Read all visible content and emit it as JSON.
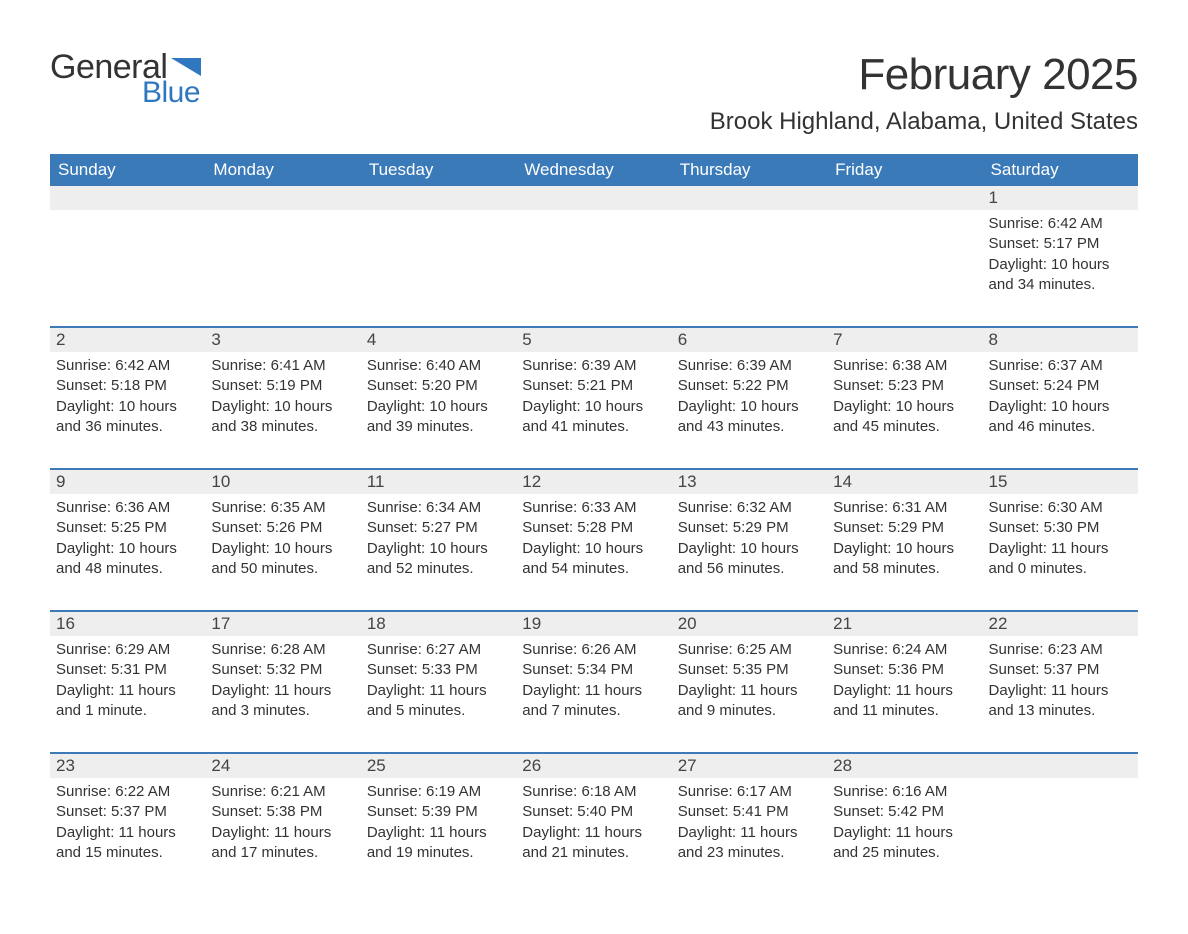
{
  "logo": {
    "text1": "General",
    "text2": "Blue",
    "color_blue": "#2f78bf",
    "color_dark": "#333333"
  },
  "header": {
    "title": "February 2025",
    "location": "Brook Highland, Alabama, United States",
    "title_color": "#333333",
    "title_fontsize": 44,
    "location_fontsize": 24
  },
  "table": {
    "header_bg": "#3a7ab8",
    "header_fg": "#ffffff",
    "row_stripe_bg": "#eeeeee",
    "separator_color": "#3a7ab8",
    "columns": [
      "Sunday",
      "Monday",
      "Tuesday",
      "Wednesday",
      "Thursday",
      "Friday",
      "Saturday"
    ]
  },
  "weeks": [
    [
      null,
      null,
      null,
      null,
      null,
      null,
      {
        "n": "1",
        "sunrise": "Sunrise: 6:42 AM",
        "sunset": "Sunset: 5:17 PM",
        "day1": "Daylight: 10 hours",
        "day2": "and 34 minutes."
      }
    ],
    [
      {
        "n": "2",
        "sunrise": "Sunrise: 6:42 AM",
        "sunset": "Sunset: 5:18 PM",
        "day1": "Daylight: 10 hours",
        "day2": "and 36 minutes."
      },
      {
        "n": "3",
        "sunrise": "Sunrise: 6:41 AM",
        "sunset": "Sunset: 5:19 PM",
        "day1": "Daylight: 10 hours",
        "day2": "and 38 minutes."
      },
      {
        "n": "4",
        "sunrise": "Sunrise: 6:40 AM",
        "sunset": "Sunset: 5:20 PM",
        "day1": "Daylight: 10 hours",
        "day2": "and 39 minutes."
      },
      {
        "n": "5",
        "sunrise": "Sunrise: 6:39 AM",
        "sunset": "Sunset: 5:21 PM",
        "day1": "Daylight: 10 hours",
        "day2": "and 41 minutes."
      },
      {
        "n": "6",
        "sunrise": "Sunrise: 6:39 AM",
        "sunset": "Sunset: 5:22 PM",
        "day1": "Daylight: 10 hours",
        "day2": "and 43 minutes."
      },
      {
        "n": "7",
        "sunrise": "Sunrise: 6:38 AM",
        "sunset": "Sunset: 5:23 PM",
        "day1": "Daylight: 10 hours",
        "day2": "and 45 minutes."
      },
      {
        "n": "8",
        "sunrise": "Sunrise: 6:37 AM",
        "sunset": "Sunset: 5:24 PM",
        "day1": "Daylight: 10 hours",
        "day2": "and 46 minutes."
      }
    ],
    [
      {
        "n": "9",
        "sunrise": "Sunrise: 6:36 AM",
        "sunset": "Sunset: 5:25 PM",
        "day1": "Daylight: 10 hours",
        "day2": "and 48 minutes."
      },
      {
        "n": "10",
        "sunrise": "Sunrise: 6:35 AM",
        "sunset": "Sunset: 5:26 PM",
        "day1": "Daylight: 10 hours",
        "day2": "and 50 minutes."
      },
      {
        "n": "11",
        "sunrise": "Sunrise: 6:34 AM",
        "sunset": "Sunset: 5:27 PM",
        "day1": "Daylight: 10 hours",
        "day2": "and 52 minutes."
      },
      {
        "n": "12",
        "sunrise": "Sunrise: 6:33 AM",
        "sunset": "Sunset: 5:28 PM",
        "day1": "Daylight: 10 hours",
        "day2": "and 54 minutes."
      },
      {
        "n": "13",
        "sunrise": "Sunrise: 6:32 AM",
        "sunset": "Sunset: 5:29 PM",
        "day1": "Daylight: 10 hours",
        "day2": "and 56 minutes."
      },
      {
        "n": "14",
        "sunrise": "Sunrise: 6:31 AM",
        "sunset": "Sunset: 5:29 PM",
        "day1": "Daylight: 10 hours",
        "day2": "and 58 minutes."
      },
      {
        "n": "15",
        "sunrise": "Sunrise: 6:30 AM",
        "sunset": "Sunset: 5:30 PM",
        "day1": "Daylight: 11 hours",
        "day2": "and 0 minutes."
      }
    ],
    [
      {
        "n": "16",
        "sunrise": "Sunrise: 6:29 AM",
        "sunset": "Sunset: 5:31 PM",
        "day1": "Daylight: 11 hours",
        "day2": "and 1 minute."
      },
      {
        "n": "17",
        "sunrise": "Sunrise: 6:28 AM",
        "sunset": "Sunset: 5:32 PM",
        "day1": "Daylight: 11 hours",
        "day2": "and 3 minutes."
      },
      {
        "n": "18",
        "sunrise": "Sunrise: 6:27 AM",
        "sunset": "Sunset: 5:33 PM",
        "day1": "Daylight: 11 hours",
        "day2": "and 5 minutes."
      },
      {
        "n": "19",
        "sunrise": "Sunrise: 6:26 AM",
        "sunset": "Sunset: 5:34 PM",
        "day1": "Daylight: 11 hours",
        "day2": "and 7 minutes."
      },
      {
        "n": "20",
        "sunrise": "Sunrise: 6:25 AM",
        "sunset": "Sunset: 5:35 PM",
        "day1": "Daylight: 11 hours",
        "day2": "and 9 minutes."
      },
      {
        "n": "21",
        "sunrise": "Sunrise: 6:24 AM",
        "sunset": "Sunset: 5:36 PM",
        "day1": "Daylight: 11 hours",
        "day2": "and 11 minutes."
      },
      {
        "n": "22",
        "sunrise": "Sunrise: 6:23 AM",
        "sunset": "Sunset: 5:37 PM",
        "day1": "Daylight: 11 hours",
        "day2": "and 13 minutes."
      }
    ],
    [
      {
        "n": "23",
        "sunrise": "Sunrise: 6:22 AM",
        "sunset": "Sunset: 5:37 PM",
        "day1": "Daylight: 11 hours",
        "day2": "and 15 minutes."
      },
      {
        "n": "24",
        "sunrise": "Sunrise: 6:21 AM",
        "sunset": "Sunset: 5:38 PM",
        "day1": "Daylight: 11 hours",
        "day2": "and 17 minutes."
      },
      {
        "n": "25",
        "sunrise": "Sunrise: 6:19 AM",
        "sunset": "Sunset: 5:39 PM",
        "day1": "Daylight: 11 hours",
        "day2": "and 19 minutes."
      },
      {
        "n": "26",
        "sunrise": "Sunrise: 6:18 AM",
        "sunset": "Sunset: 5:40 PM",
        "day1": "Daylight: 11 hours",
        "day2": "and 21 minutes."
      },
      {
        "n": "27",
        "sunrise": "Sunrise: 6:17 AM",
        "sunset": "Sunset: 5:41 PM",
        "day1": "Daylight: 11 hours",
        "day2": "and 23 minutes."
      },
      {
        "n": "28",
        "sunrise": "Sunrise: 6:16 AM",
        "sunset": "Sunset: 5:42 PM",
        "day1": "Daylight: 11 hours",
        "day2": "and 25 minutes."
      },
      null
    ]
  ]
}
